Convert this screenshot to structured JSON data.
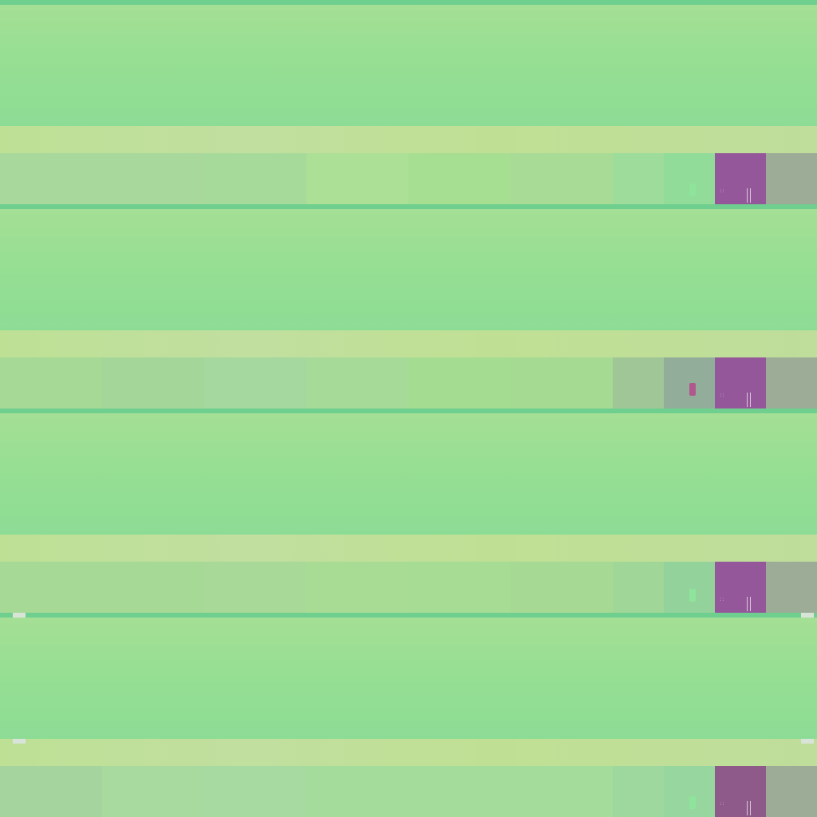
{
  "bands": [
    {
      "accent": "#94589a",
      "tiles": [
        "#a8d89c",
        "#a8d89c",
        "#a6da9a",
        "#ace096",
        "#a6de92",
        "#a8dc96",
        "#9ddc9a",
        "#92dc9a",
        "#94589a",
        "#9cac96"
      ]
    },
    {
      "accent": "#94589a",
      "tiles": [
        "#a6d896",
        "#a4d69a",
        "#a4d89e",
        "#a6da98",
        "#a4dc92",
        "#a4da92",
        "#a0c698",
        "#92ae9a",
        "#94589a",
        "#9cac96"
      ]
    },
    {
      "accent": "#94589a",
      "tiles": [
        "#a6d896",
        "#a6d896",
        "#a8d998",
        "#a8dc94",
        "#a6dc94",
        "#a6da94",
        "#a0d698",
        "#94d29c",
        "#94589a",
        "#9cac96"
      ]
    },
    {
      "accent": "#8e5a8a",
      "tiles": [
        "#a6d49e",
        "#a8daa0",
        "#a6daa0",
        "#a4dc9c",
        "#a4dc9c",
        "#a4dc9c",
        "#9ed89e",
        "#98d6a0",
        "#8e5a8a",
        "#9cac96"
      ]
    }
  ],
  "icons": {
    "marker": "marker-icon",
    "dots": "dots-icon",
    "bar": "bar-icon"
  }
}
